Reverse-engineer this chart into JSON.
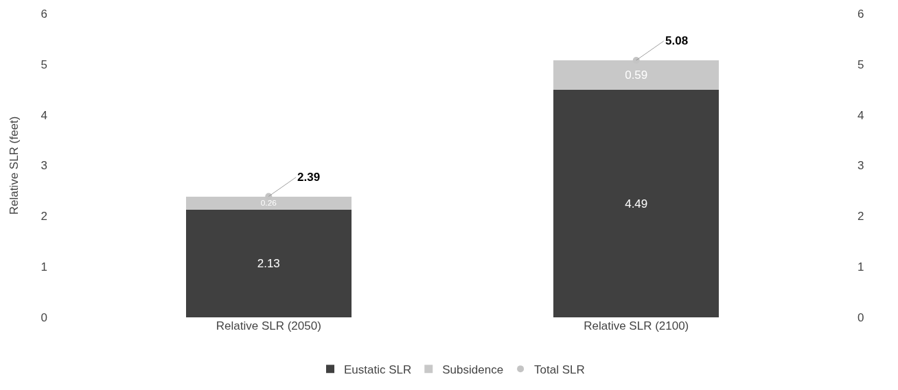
{
  "chart_data": {
    "type": "bar",
    "stacked": true,
    "ylabel": "Relative SLR (feet)",
    "categories": [
      "Relative SLR (2050)",
      "Relative SLR (2100)"
    ],
    "series": [
      {
        "name": "Eustatic SLR",
        "color": "#404040",
        "values": [
          2.13,
          4.49
        ]
      },
      {
        "name": "Subsidence",
        "color": "#c8c8c8",
        "values": [
          0.26,
          0.59
        ]
      },
      {
        "name": "Total SLR",
        "type": "scatter",
        "marker": "circle",
        "color": "#c4c4c4",
        "x": [
          "Relative SLR (2050)",
          "Relative SLR (2100)"
        ],
        "values": [
          2.39,
          5.08
        ]
      }
    ],
    "ylim": [
      0,
      6
    ],
    "yticks": [
      0,
      1,
      2,
      3,
      4,
      5,
      6
    ],
    "y2lim": [
      0,
      6
    ],
    "y2ticks": [
      0,
      1,
      2,
      3,
      4,
      5,
      6
    ],
    "data_labels": true,
    "grid": false,
    "legend": "bottom"
  }
}
